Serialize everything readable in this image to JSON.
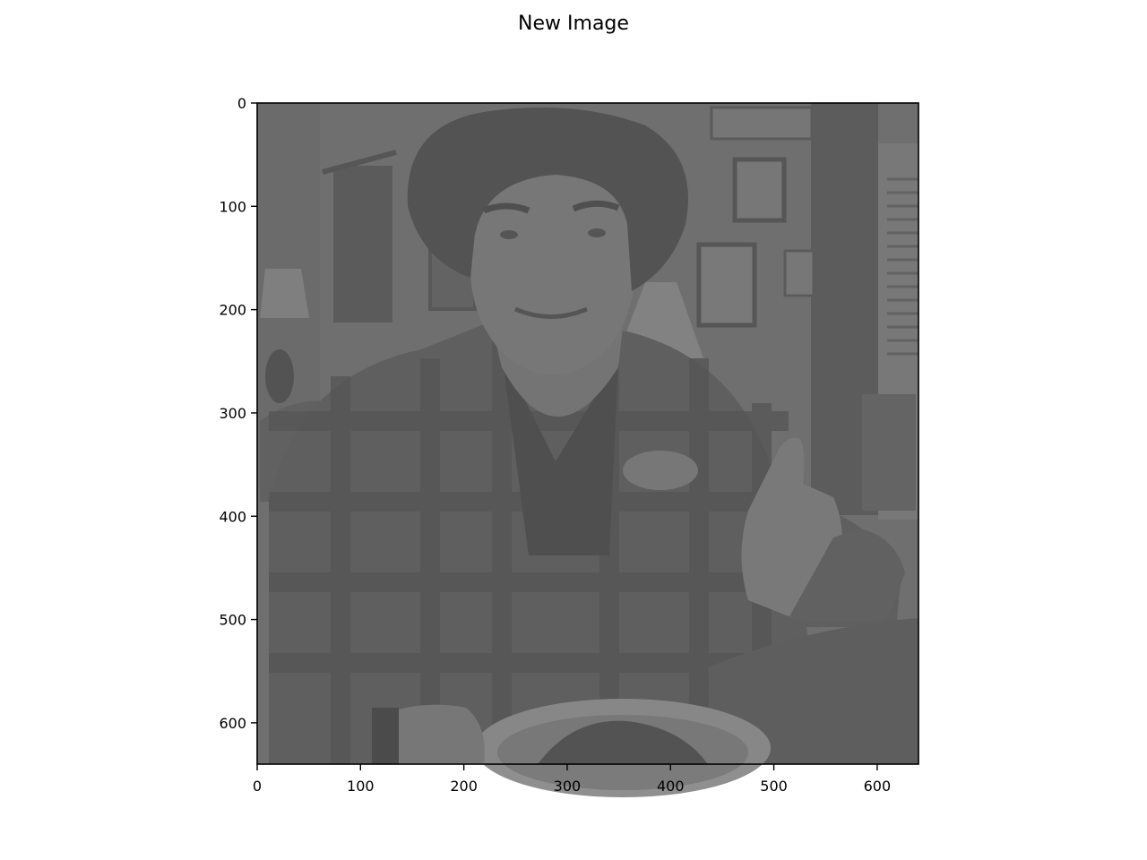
{
  "figure": {
    "title": "New Image"
  },
  "chart_data": {
    "type": "image",
    "title": "New Image",
    "xlabel": "",
    "ylabel": "",
    "xlim": [
      0,
      640
    ],
    "ylim": [
      640,
      0
    ],
    "y_inverted": true,
    "xticks": [
      0,
      100,
      200,
      300,
      400,
      500,
      600
    ],
    "yticks": [
      0,
      100,
      200,
      300,
      400,
      500,
      600
    ],
    "grid": false,
    "colormap": "gray",
    "image_content": "grayscale low-contrast photo of a smiling man in a plaid flannel shirt giving a thumbs-up, seated at a wooden dining table with a plate of food in the foreground; framed pictures, a lamp and window blinds in the background"
  },
  "colors": {
    "image_base": "#6f6f6f",
    "image_dark": "#4a4a4a",
    "image_light": "#8a8a8a",
    "axis": "#000000"
  }
}
